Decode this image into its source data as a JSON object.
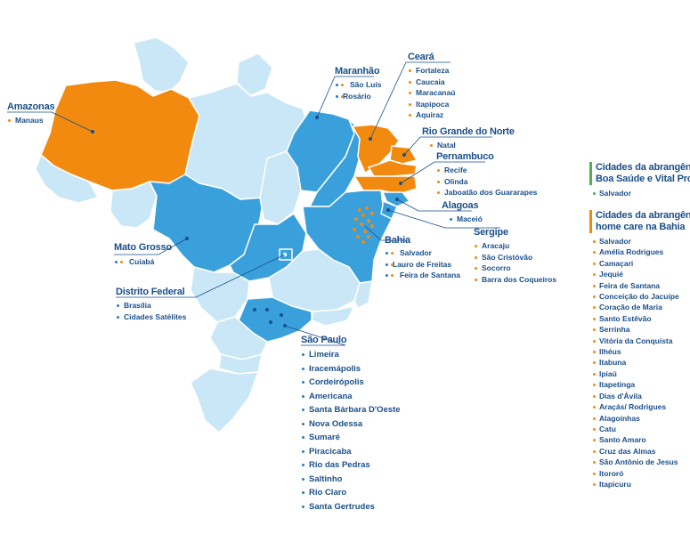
{
  "colors": {
    "highlight_orange": "#f28a0f",
    "state_blue": "#3aa0dc",
    "light_blue": "#c9e7f6",
    "text_blue": "#1a4f8a",
    "legend_green": "#4caf50"
  },
  "states": {
    "amazonas": {
      "title": "Amazonas",
      "cities": [
        "Manaus"
      ]
    },
    "maranhao": {
      "title": "Maranhão",
      "cities": [
        "São Luís",
        "Rosário"
      ]
    },
    "ceara": {
      "title": "Ceará",
      "cities": [
        "Fortaleza",
        "Caucaia",
        "Maracanaú",
        "Itapipoca",
        "Aquiraz"
      ]
    },
    "rgn": {
      "title": "Rio Grande do Norte",
      "cities": [
        "Natal"
      ]
    },
    "pernambuco": {
      "title": "Pernambuco",
      "cities": [
        "Recife",
        "Olinda",
        "Jaboatão dos Guararapes"
      ]
    },
    "alagoas": {
      "title": "Alagoas",
      "cities": [
        "Maceió"
      ]
    },
    "sergipe": {
      "title": "Sergipe",
      "cities": [
        "Aracaju",
        "São Cristóvão",
        "Socorro",
        "Barra dos Coqueiros"
      ]
    },
    "bahia": {
      "title": "Bahia",
      "cities": [
        "Salvador",
        "Lauro de Freitas",
        "Feira de Santana"
      ]
    },
    "mato_grosso": {
      "title": "Mato Grosso",
      "cities": [
        "Cuiabá"
      ]
    },
    "df": {
      "title": "Distrito Federal",
      "cities": [
        "Brasília",
        "Cidades Satélites"
      ]
    },
    "sao_paulo": {
      "title": "São Paulo",
      "cities": [
        "Limeira",
        "Iracemápolis",
        "Cordeirópolis",
        "Americana",
        "Santa Bárbara D'Oeste",
        "Nova Odessa",
        "Sumaré",
        "Piracicaba",
        "Rio das Pedras",
        "Saltinho",
        "Rio Claro",
        "Santa Gertrudes"
      ]
    }
  },
  "legend": {
    "boa_saude": {
      "title_line1": "Cidades da abrangência",
      "title_line2": "Boa Saúde e Vital Pronto",
      "cities": [
        "Salvador"
      ]
    },
    "home_care": {
      "title_line1": "Cidades da abrangência",
      "title_line2": "home care na Bahia",
      "cities": [
        "Salvador",
        "Amélia Rodrigues",
        "Camaçari",
        "Jequié",
        "Feira de Santana",
        "Conceição do Jacuípe",
        "Coração de Maria",
        "Santo Estêvão",
        "Serrinha",
        "Vitória da Conquista",
        "Ilhéus",
        "Itabuna",
        "Ipiaú",
        "Itapetinga",
        "Dias d'Ávila",
        "Araçás/ Rodrigues",
        "Alagoinhas",
        "Catu",
        "Santo Amaro",
        "Cruz das Almas",
        "São Antônio de Jesus",
        "Itororó",
        "Itapicuru"
      ]
    }
  }
}
